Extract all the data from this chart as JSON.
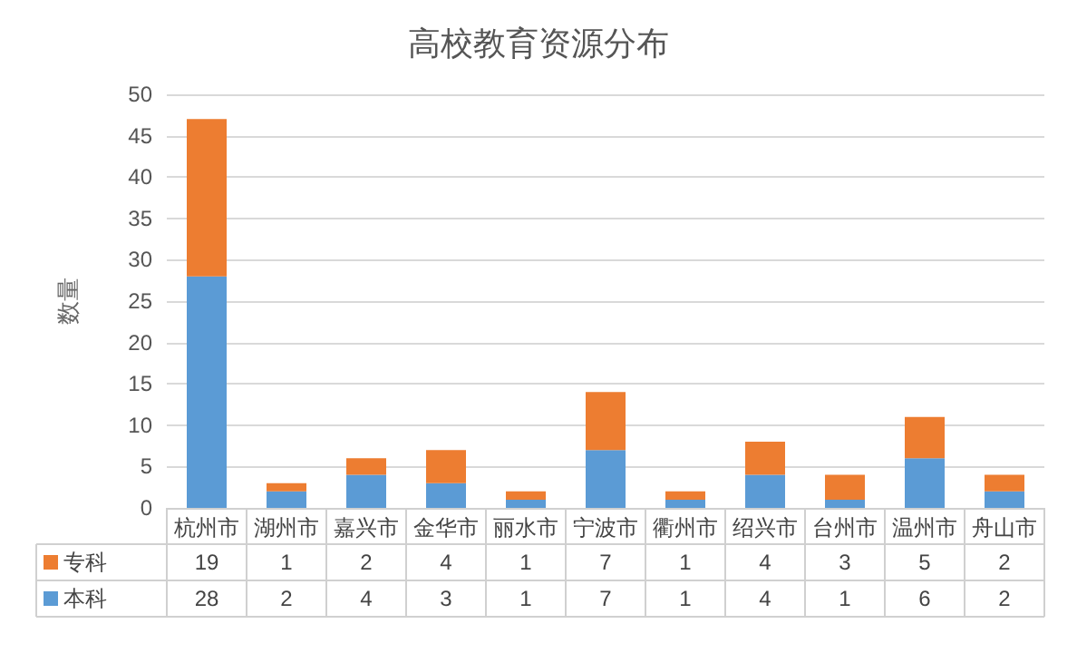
{
  "chart_data": {
    "type": "bar",
    "title": "高校教育资源分布",
    "ylabel": "数量",
    "stacked": true,
    "categories": [
      "杭州市",
      "湖州市",
      "嘉兴市",
      "金华市",
      "丽水市",
      "宁波市",
      "衢州市",
      "绍兴市",
      "台州市",
      "温州市",
      "舟山市"
    ],
    "series": [
      {
        "name": "本科",
        "color": "#5b9bd5",
        "values": [
          28,
          2,
          4,
          3,
          1,
          7,
          1,
          4,
          1,
          6,
          2
        ]
      },
      {
        "name": "专科",
        "color": "#ed7d31",
        "values": [
          19,
          1,
          2,
          4,
          1,
          7,
          1,
          4,
          3,
          5,
          2
        ]
      }
    ],
    "ylim": [
      0,
      50
    ],
    "yticks": [
      0,
      5,
      10,
      15,
      20,
      25,
      30,
      35,
      40,
      45,
      50
    ],
    "grid": "y",
    "legend": "bottom left",
    "data_labels": true
  }
}
